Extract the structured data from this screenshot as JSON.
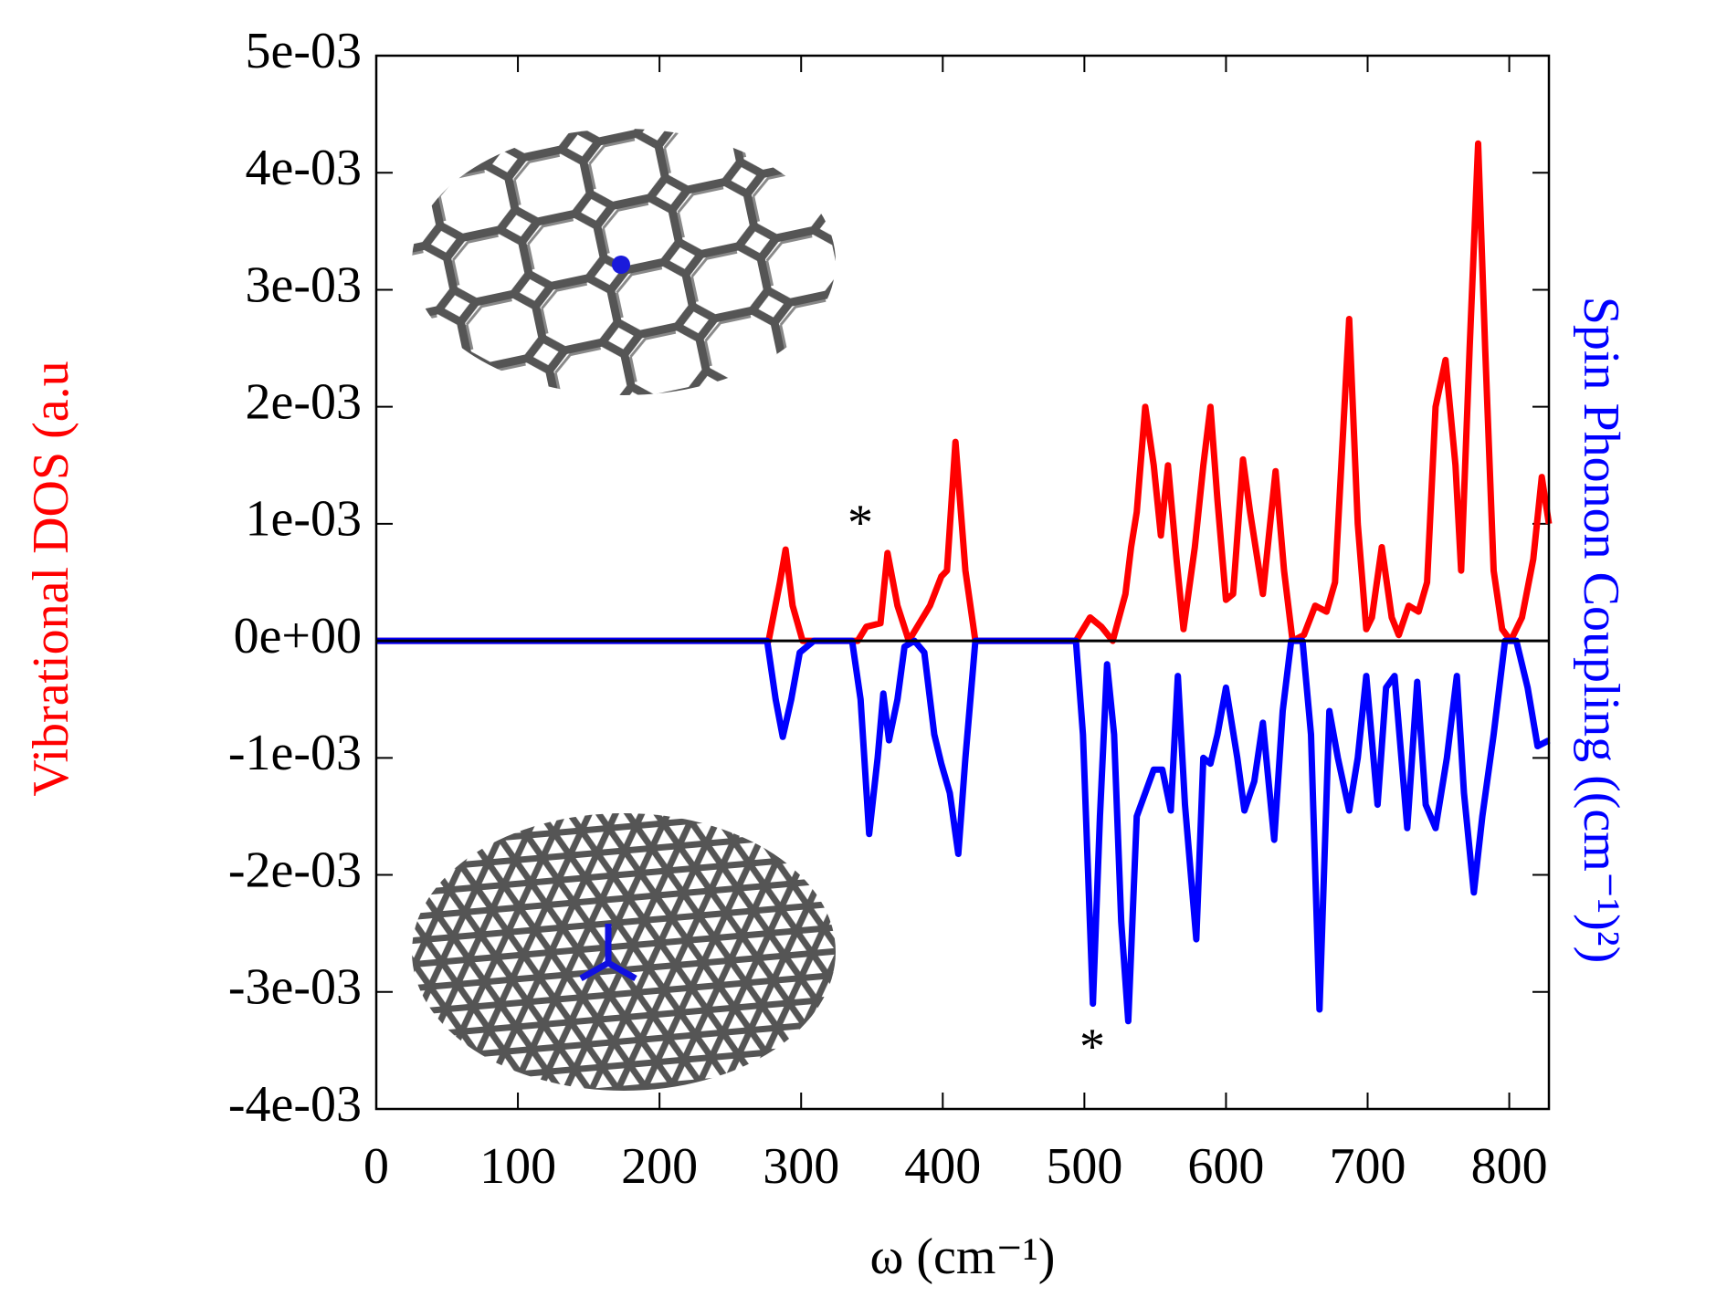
{
  "chart_data": {
    "type": "line",
    "xlabel": "ω (cm⁻¹)",
    "ylabel": "Vibrational DOS (a.u",
    "y2label": "Spin Phonon Coupling ((cm⁻¹)²)",
    "xlim": [
      0,
      828
    ],
    "xticks": [
      0,
      100,
      200,
      300,
      400,
      500,
      600,
      700,
      800
    ],
    "ylim": [
      -0.004,
      0.005
    ],
    "yticks": [
      {
        "value": -0.004,
        "label": "-4e-03"
      },
      {
        "value": -0.003,
        "label": "-3e-03"
      },
      {
        "value": -0.002,
        "label": "-2e-03"
      },
      {
        "value": -0.001,
        "label": "-1e-03"
      },
      {
        "value": 0,
        "label": "0e+00"
      },
      {
        "value": 0.001,
        "label": "1e-03"
      },
      {
        "value": 0.002,
        "label": "2e-03"
      },
      {
        "value": 0.003,
        "label": "3e-03"
      },
      {
        "value": 0.004,
        "label": "4e-03"
      },
      {
        "value": 0.005,
        "label": "5e-03"
      }
    ],
    "annotations": [
      "*",
      "*"
    ],
    "series": [
      {
        "color": "#ff0000",
        "x": [
          0,
          277,
          285,
          289,
          294,
          301,
          340,
          346,
          356,
          361,
          368,
          376,
          391,
          399,
          403,
          409,
          416,
          423,
          494,
          504,
          512,
          520,
          529,
          533,
          537,
          543,
          549,
          554,
          559,
          565,
          570,
          578,
          584,
          589,
          594,
          600,
          605,
          612,
          617,
          626,
          635,
          641,
          647,
          655,
          663,
          671,
          677,
          687,
          693,
          699,
          703,
          710,
          717,
          722,
          729,
          736,
          742,
          748,
          755,
          762,
          766,
          772,
          778,
          783,
          789,
          795,
          801,
          809,
          817,
          823,
          828
        ],
        "values": [
          0,
          0,
          0.0005,
          0.00078,
          0.0003,
          0,
          0,
          0.00012,
          0.00015,
          0.00075,
          0.0003,
          0,
          0.0003,
          0.00055,
          0.0006,
          0.0017,
          0.0006,
          0,
          0,
          0.0002,
          0.00012,
          0,
          0.0004,
          0.0008,
          0.0011,
          0.002,
          0.0015,
          0.0009,
          0.0015,
          0.0007,
          0.0001,
          0.0008,
          0.0015,
          0.002,
          0.0012,
          0.00035,
          0.0004,
          0.00155,
          0.0011,
          0.0004,
          0.00145,
          0.0006,
          0,
          5e-05,
          0.0003,
          0.00025,
          0.0005,
          0.00275,
          0.001,
          0.0001,
          0.0002,
          0.0008,
          0.0002,
          5e-05,
          0.0003,
          0.00025,
          0.0005,
          0.002,
          0.0024,
          0.0015,
          0.0006,
          0.0025,
          0.00425,
          0.0025,
          0.0006,
          0.0001,
          0,
          0.0002,
          0.0007,
          0.0014,
          0.001
        ]
      },
      {
        "color": "#0000ff",
        "x": [
          0,
          276,
          282,
          287,
          293,
          299,
          309,
          336,
          342,
          348,
          354,
          358,
          362,
          368,
          373,
          380,
          387,
          394,
          399,
          405,
          411,
          416,
          423,
          494,
          499,
          506,
          511,
          516,
          521,
          526,
          531,
          537,
          543,
          549,
          555,
          561,
          566,
          571,
          579,
          584,
          589,
          594,
          600,
          608,
          613,
          620,
          626,
          634,
          640,
          646,
          654,
          660,
          666,
          673,
          679,
          687,
          693,
          699,
          707,
          713,
          719,
          728,
          735,
          741,
          748,
          756,
          763,
          768,
          775,
          781,
          789,
          797,
          805,
          813,
          820,
          828
        ],
        "values": [
          0,
          0,
          -0.0005,
          -0.00082,
          -0.0005,
          -0.0001,
          0,
          0,
          -0.0005,
          -0.00165,
          -0.001,
          -0.00045,
          -0.00085,
          -0.0005,
          -5e-05,
          0,
          -0.0001,
          -0.0008,
          -0.00105,
          -0.0013,
          -0.00182,
          -0.001,
          0,
          0,
          -0.0008,
          -0.0031,
          -0.0015,
          -0.0002,
          -0.0008,
          -0.0024,
          -0.00325,
          -0.0015,
          -0.0013,
          -0.0011,
          -0.0011,
          -0.00145,
          -0.0003,
          -0.0014,
          -0.00255,
          -0.001,
          -0.00105,
          -0.0008,
          -0.0004,
          -0.001,
          -0.00145,
          -0.0012,
          -0.0007,
          -0.0017,
          -0.0006,
          0,
          0,
          -0.0008,
          -0.00315,
          -0.0006,
          -0.001,
          -0.00145,
          -0.001,
          -0.0003,
          -0.0014,
          -0.0004,
          -0.0003,
          -0.0016,
          -0.00035,
          -0.0014,
          -0.0016,
          -0.001,
          -0.0003,
          -0.0013,
          -0.00215,
          -0.0015,
          -0.0008,
          0,
          0,
          -0.0004,
          -0.0009,
          -0.00085
        ]
      }
    ]
  }
}
